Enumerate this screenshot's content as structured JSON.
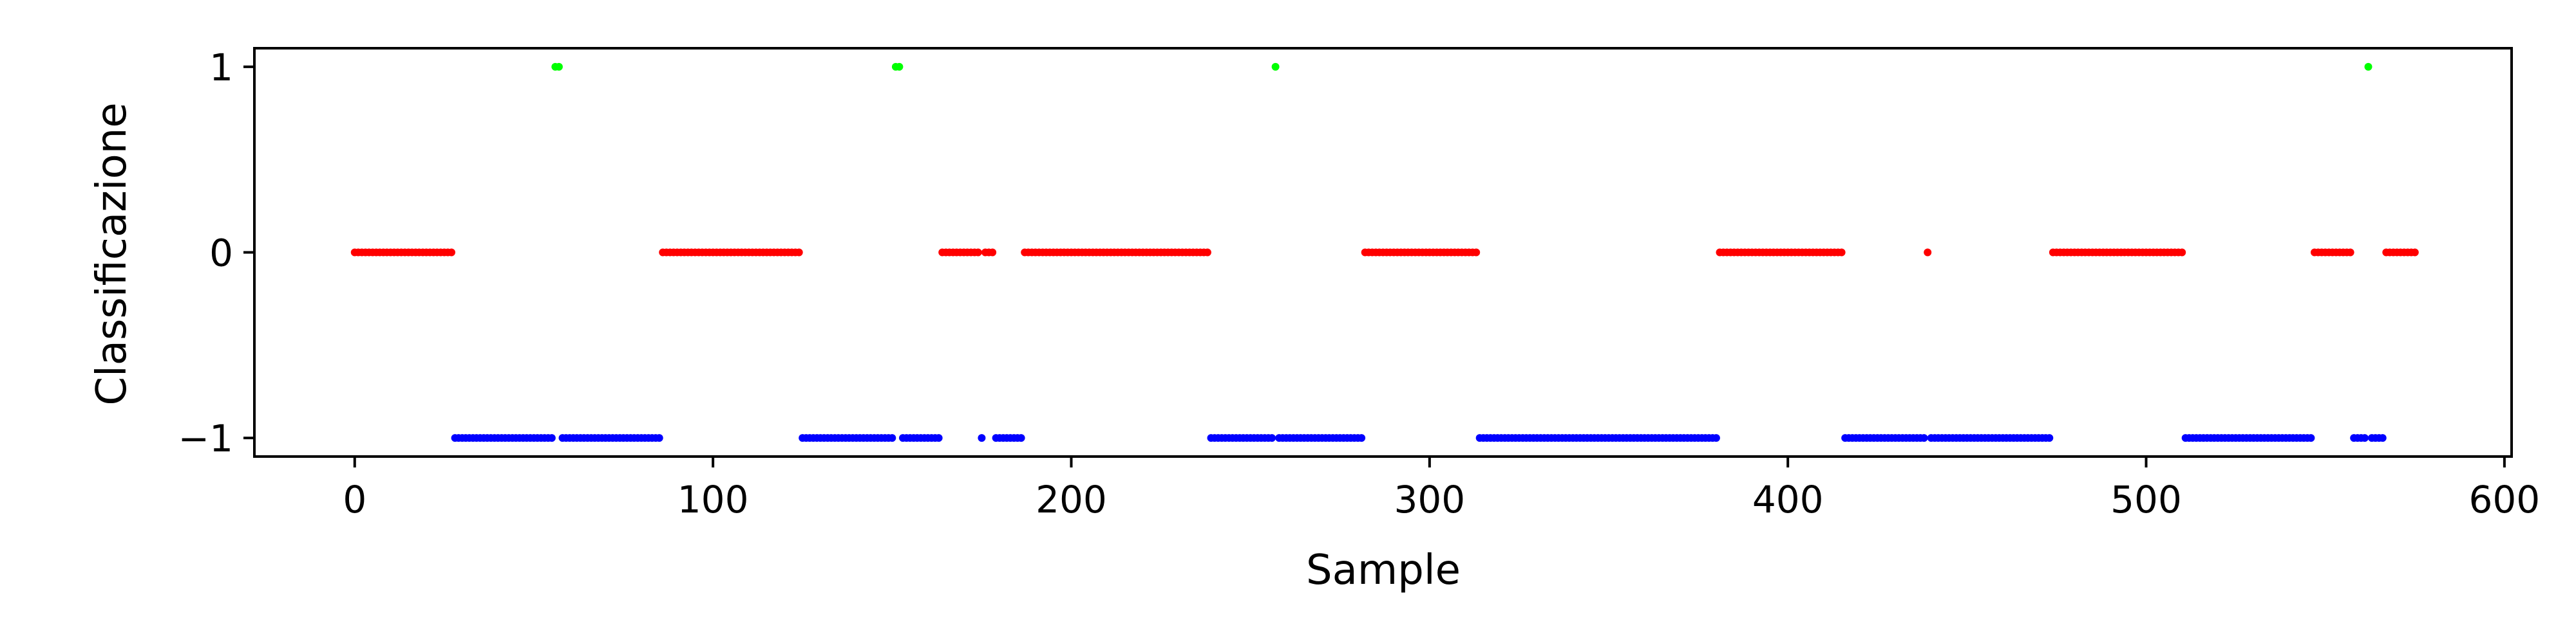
{
  "chart_data": {
    "type": "scatter",
    "title": "",
    "xlabel": "Sample",
    "ylabel": "Classificazione",
    "xlim": [
      -28,
      602
    ],
    "ylim": [
      -1.1,
      1.1
    ],
    "xticks": [
      0,
      100,
      200,
      300,
      400,
      500,
      600
    ],
    "yticks": [
      -1,
      0,
      1
    ],
    "ytick_labels": [
      "−1",
      "0",
      "1"
    ],
    "grid": false,
    "legend": "none",
    "colors": {
      "-1": "#0000ff",
      "0": "#ff0000",
      "1": "#00ff00"
    },
    "segments": [
      {
        "value": 0,
        "x_start": 0,
        "x_end": 27
      },
      {
        "value": -1,
        "x_start": 28,
        "x_end": 55
      },
      {
        "value": 1,
        "x_start": 56,
        "x_end": 57
      },
      {
        "value": -1,
        "x_start": 58,
        "x_end": 85
      },
      {
        "value": 0,
        "x_start": 86,
        "x_end": 124
      },
      {
        "value": -1,
        "x_start": 125,
        "x_end": 150
      },
      {
        "value": 1,
        "x_start": 151,
        "x_end": 152
      },
      {
        "value": -1,
        "x_start": 153,
        "x_end": 163
      },
      {
        "value": 0,
        "x_start": 164,
        "x_end": 174
      },
      {
        "value": -1,
        "x_start": 175,
        "x_end": 175
      },
      {
        "value": 0,
        "x_start": 176,
        "x_end": 178
      },
      {
        "value": -1,
        "x_start": 179,
        "x_end": 186
      },
      {
        "value": 0,
        "x_start": 187,
        "x_end": 238
      },
      {
        "value": -1,
        "x_start": 239,
        "x_end": 256
      },
      {
        "value": 1,
        "x_start": 257,
        "x_end": 257
      },
      {
        "value": -1,
        "x_start": 258,
        "x_end": 281
      },
      {
        "value": 0,
        "x_start": 282,
        "x_end": 313
      },
      {
        "value": -1,
        "x_start": 314,
        "x_end": 380
      },
      {
        "value": 0,
        "x_start": 381,
        "x_end": 415
      },
      {
        "value": -1,
        "x_start": 416,
        "x_end": 438
      },
      {
        "value": 0,
        "x_start": 439,
        "x_end": 439
      },
      {
        "value": -1,
        "x_start": 440,
        "x_end": 473
      },
      {
        "value": 0,
        "x_start": 474,
        "x_end": 510
      },
      {
        "value": -1,
        "x_start": 511,
        "x_end": 546
      },
      {
        "value": 0,
        "x_start": 547,
        "x_end": 557
      },
      {
        "value": -1,
        "x_start": 558,
        "x_end": 561
      },
      {
        "value": 1,
        "x_start": 562,
        "x_end": 562
      },
      {
        "value": -1,
        "x_start": 563,
        "x_end": 566
      },
      {
        "value": 0,
        "x_start": 567,
        "x_end": 575
      }
    ]
  }
}
